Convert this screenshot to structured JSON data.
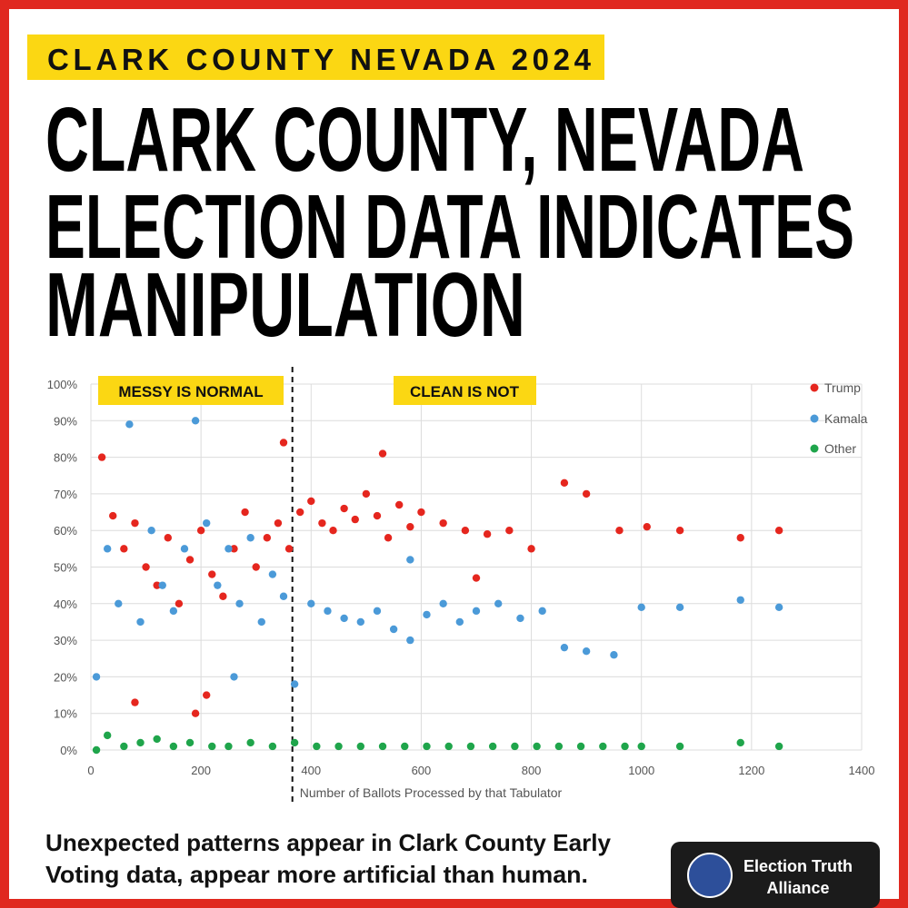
{
  "header": {
    "tag": "CLARK COUNTY NEVADA 2024",
    "headline_lines": [
      "CLARK COUNTY, NEVADA",
      "ELECTION DATA INDICATES",
      "MANIPULATION"
    ]
  },
  "chart_data": {
    "type": "scatter",
    "xlabel": "Number of Ballots Processed by that Tabulator",
    "xlim": [
      0,
      1400
    ],
    "xticks": [
      0,
      200,
      400,
      600,
      800,
      1000,
      1200,
      1400
    ],
    "ylim": [
      0,
      100
    ],
    "yticks": [
      {
        "value": 0,
        "label": "0%"
      },
      {
        "value": 10,
        "label": "10%"
      },
      {
        "value": 20,
        "label": "20%"
      },
      {
        "value": 30,
        "label": "30%"
      },
      {
        "value": 40,
        "label": "40%"
      },
      {
        "value": 50,
        "label": "50%"
      },
      {
        "value": 60,
        "label": "60%"
      },
      {
        "value": 70,
        "label": "70%"
      },
      {
        "value": 80,
        "label": "80%"
      },
      {
        "value": 90,
        "label": "90%"
      },
      {
        "value": 100,
        "label": "100%"
      }
    ],
    "grid": true,
    "legend": "upper right",
    "divider_x": 366,
    "annotations": [
      "MESSY IS NORMAL",
      "CLEAN IS NOT"
    ],
    "series": [
      {
        "name": "Trump",
        "color": "#e5261e",
        "x": [
          20,
          40,
          60,
          80,
          100,
          120,
          140,
          160,
          180,
          200,
          220,
          240,
          260,
          280,
          300,
          320,
          340,
          360,
          380,
          400,
          420,
          440,
          460,
          480,
          500,
          520,
          540,
          560,
          580,
          600,
          640,
          680,
          720,
          760,
          800,
          860,
          900,
          960,
          1010,
          1070,
          1180,
          1250,
          190,
          210,
          80,
          530,
          350,
          700
        ],
        "values": [
          80,
          64,
          55,
          62,
          50,
          45,
          58,
          40,
          52,
          60,
          48,
          42,
          55,
          65,
          50,
          58,
          62,
          55,
          65,
          68,
          62,
          60,
          66,
          63,
          70,
          64,
          58,
          67,
          61,
          65,
          62,
          60,
          59,
          60,
          55,
          73,
          70,
          60,
          61,
          60,
          58,
          60,
          10,
          15,
          13,
          81,
          84,
          47
        ]
      },
      {
        "name": "Kamala",
        "color": "#4b9ad8",
        "x": [
          10,
          30,
          50,
          70,
          90,
          110,
          130,
          150,
          170,
          190,
          210,
          230,
          250,
          270,
          290,
          310,
          330,
          350,
          370,
          400,
          430,
          460,
          490,
          520,
          550,
          580,
          610,
          640,
          670,
          700,
          740,
          780,
          820,
          860,
          900,
          950,
          1000,
          1070,
          1180,
          1250,
          260,
          580
        ],
        "values": [
          20,
          55,
          40,
          89,
          35,
          60,
          45,
          38,
          55,
          90,
          62,
          45,
          55,
          40,
          58,
          35,
          48,
          42,
          18,
          40,
          38,
          36,
          35,
          38,
          33,
          30,
          37,
          40,
          35,
          38,
          40,
          36,
          38,
          28,
          27,
          26,
          39,
          39,
          41,
          39,
          20,
          52
        ]
      },
      {
        "name": "Other",
        "color": "#1fa54b",
        "x": [
          10,
          30,
          60,
          90,
          120,
          150,
          180,
          220,
          250,
          290,
          330,
          370,
          410,
          450,
          490,
          530,
          570,
          610,
          650,
          690,
          730,
          770,
          810,
          850,
          890,
          930,
          970,
          1000,
          1070,
          1180,
          1250
        ],
        "values": [
          0,
          4,
          1,
          2,
          3,
          1,
          2,
          1,
          1,
          2,
          1,
          2,
          1,
          1,
          1,
          1,
          1,
          1,
          1,
          1,
          1,
          1,
          1,
          1,
          1,
          1,
          1,
          1,
          1,
          2,
          1
        ]
      }
    ]
  },
  "caption_lines": [
    "Unexpected patterns appear in Clark County Early",
    "Voting data, appear more artificial than human."
  ],
  "badge": [
    "Election Truth",
    "Alliance"
  ]
}
